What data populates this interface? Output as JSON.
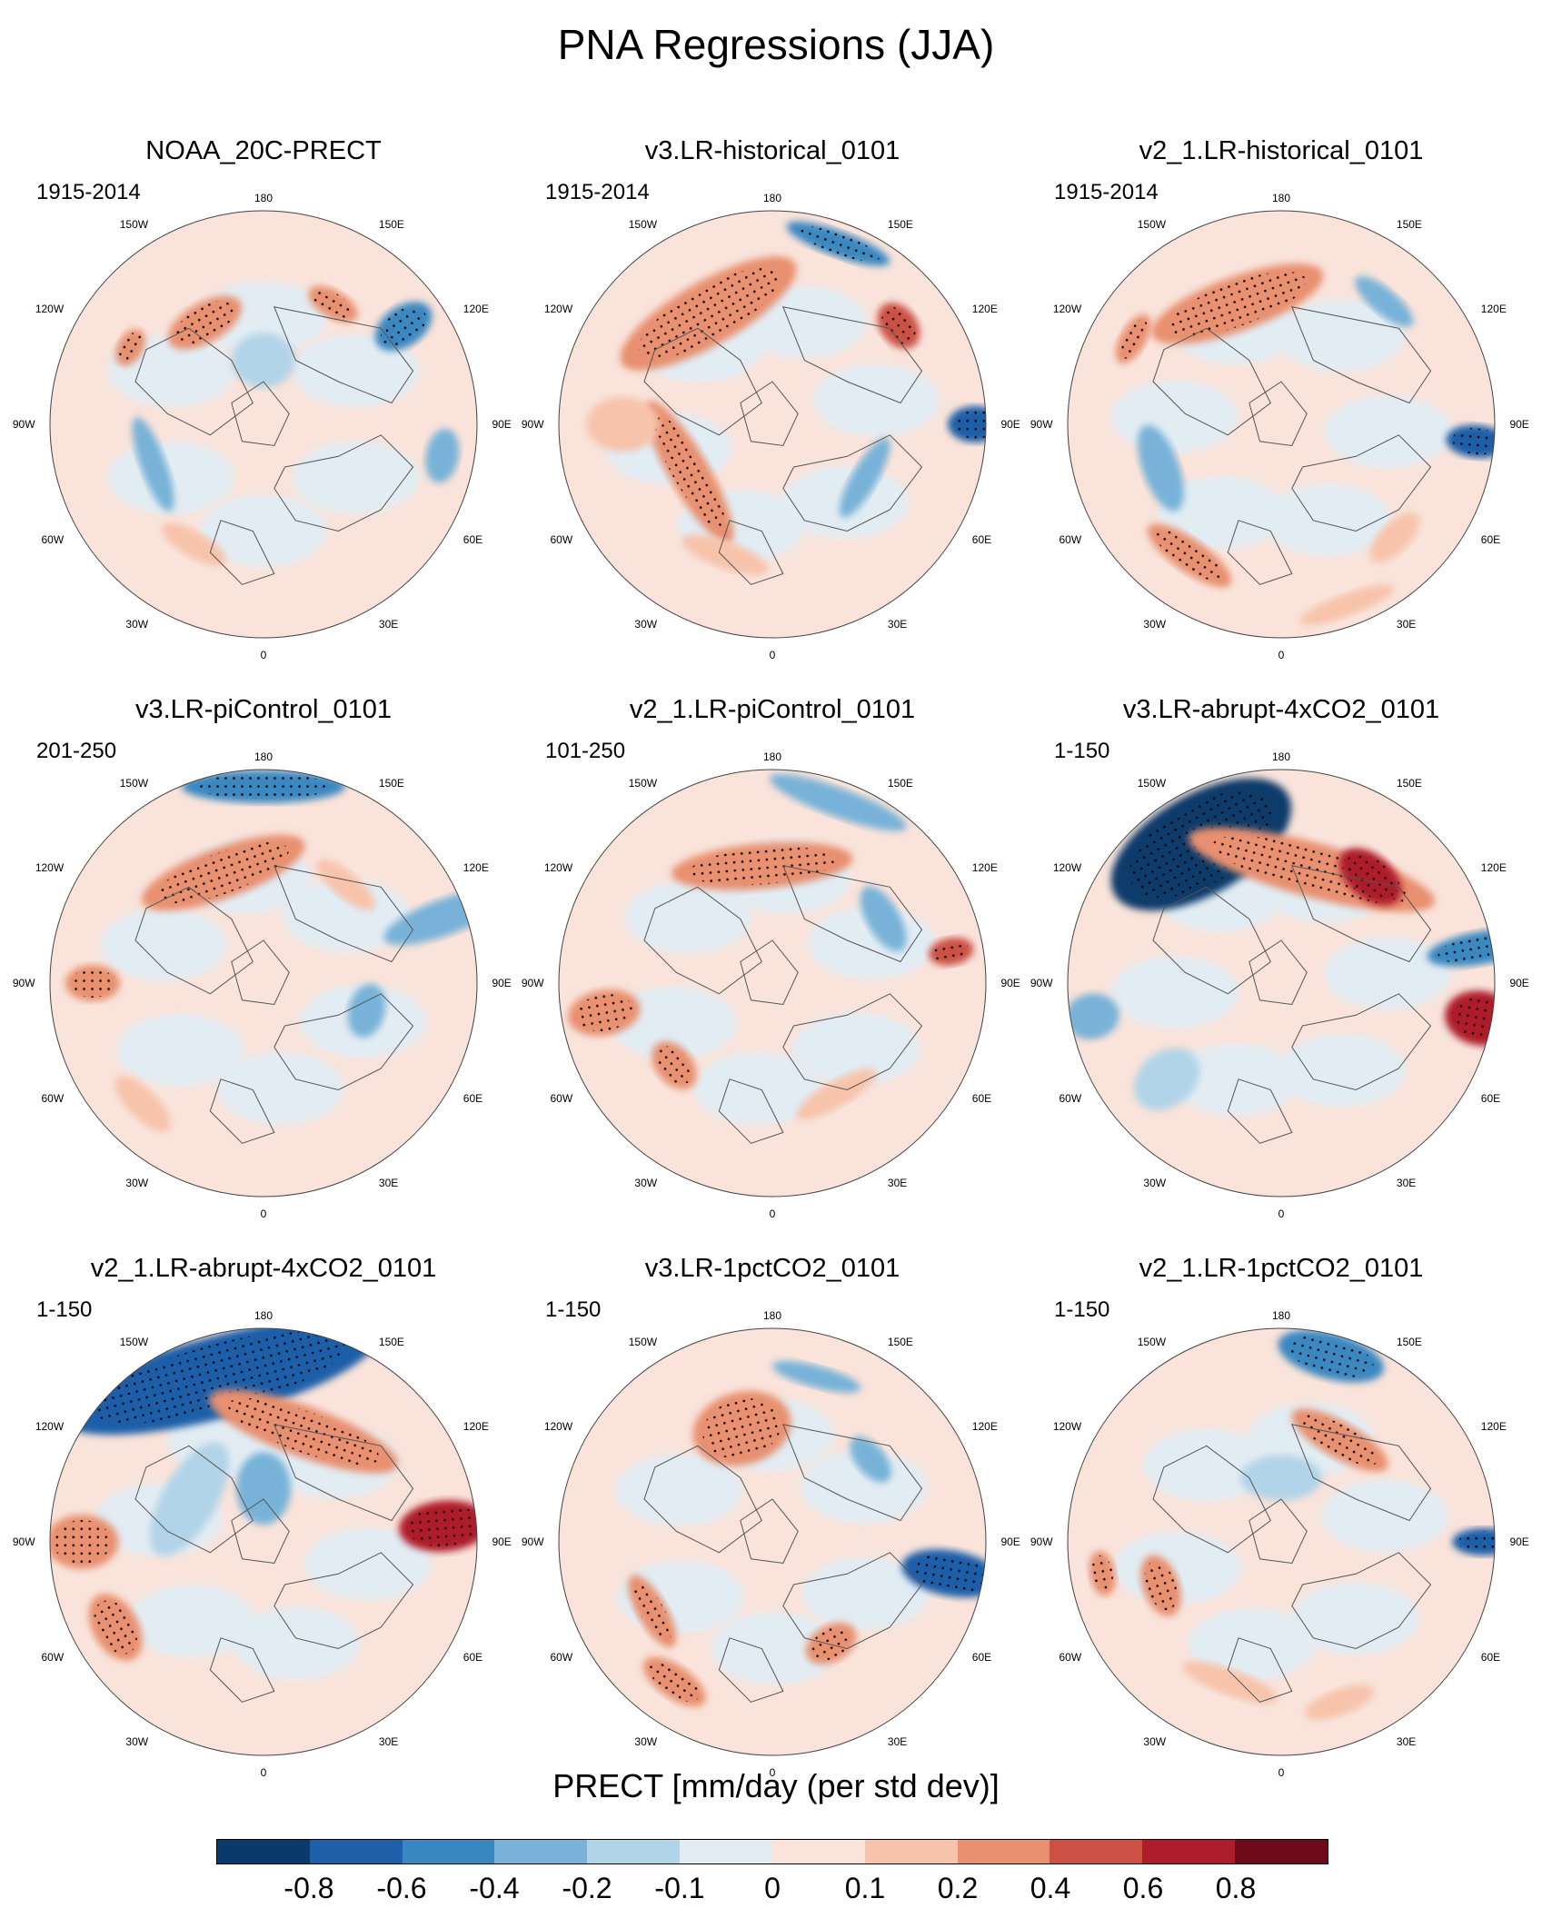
{
  "title": "PNA Regressions (JJA)",
  "colorbar": {
    "title": "PRECT [mm/day (per std dev)]",
    "colors": [
      "#0a3a6b",
      "#1f5ea8",
      "#3a88c1",
      "#78b2d8",
      "#b2d4e8",
      "#e2ecf3",
      "#f9e3da",
      "#f7c3aa",
      "#e8906f",
      "#cc5144",
      "#ae1d2a",
      "#6e0a1a"
    ],
    "tick_labels": [
      "-0.8",
      "-0.6",
      "-0.4",
      "-0.2",
      "-0.1",
      "0",
      "0.1",
      "0.2",
      "0.4",
      "0.6",
      "0.8"
    ]
  },
  "map_labels": {
    "lon_180": "180",
    "lon_150w": "150W",
    "lon_150e": "150E",
    "lon_120w": "120W",
    "lon_120e": "120E",
    "lon_90w": "90W",
    "lon_90e": "90E",
    "lon_60w": "60W",
    "lon_60e": "60E",
    "lon_30w": "30W",
    "lon_30e": "30E",
    "lon_0": "0"
  },
  "panels": [
    {
      "title": "NOAA_20C-PRECT",
      "period": "1915-2014"
    },
    {
      "title": "v3.LR-historical_0101",
      "period": "1915-2014"
    },
    {
      "title": "v2_1.LR-historical_0101",
      "period": "1915-2014"
    },
    {
      "title": "v3.LR-piControl_0101",
      "period": "201-250"
    },
    {
      "title": "v2_1.LR-piControl_0101",
      "period": "101-250"
    },
    {
      "title": "v3.LR-abrupt-4xCO2_0101",
      "period": "1-150"
    },
    {
      "title": "v2_1.LR-abrupt-4xCO2_0101",
      "period": "1-150"
    },
    {
      "title": "v3.LR-1pctCO2_0101",
      "period": "1-150"
    },
    {
      "title": "v2_1.LR-1pctCO2_0101",
      "period": "1-150"
    }
  ]
}
